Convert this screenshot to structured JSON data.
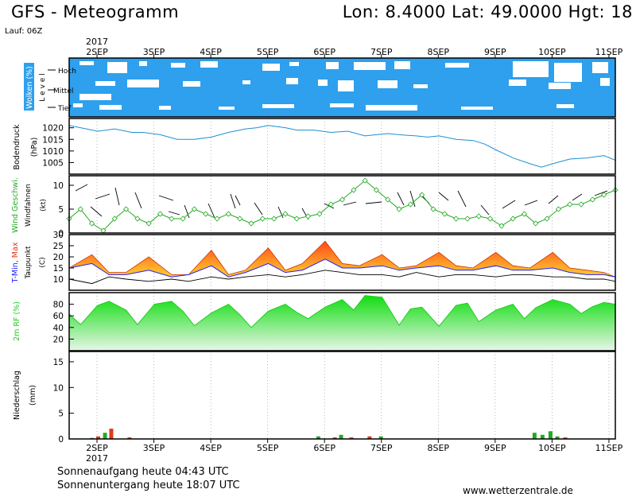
{
  "header": {
    "title": "GFS - Meteogramm",
    "location": "Lon: 8.4000  Lat: 49.0000  Hgt: 18",
    "run": "Lauf: 06Z"
  },
  "footer": {
    "sunrise": "Sonnenaufgang heute 04:43 UTC",
    "sunset": "Sonnenuntergang heute 18:07 UTC",
    "source": "www.wetterzentrale.de"
  },
  "colors": {
    "clouds": "#2ea0ee",
    "pressure": "#1e90d0",
    "wind": "#22aa22",
    "temp_fill_top": "#ff4a1a",
    "temp_fill_bottom": "#ffd030",
    "tmin": "#2222ff",
    "dewpoint": "#000000",
    "rh": "#22cc22",
    "precip_green": "#22aa22",
    "precip_red": "#e03a1a"
  },
  "chart_data": [
    {
      "type": "area",
      "panel": "clouds",
      "ylabel": "Wolken (%)",
      "ylabel2": "L e v e l",
      "levels": [
        "Hoch",
        "Mittel",
        "Tief"
      ],
      "x_ticks": [
        "2SEP",
        "3SEP",
        "4SEP",
        "5SEP",
        "6SEP",
        "7SEP",
        "8SEP",
        "9SEP",
        "10SEP",
        "11SEP"
      ],
      "year": "2017"
    },
    {
      "type": "line",
      "panel": "pressure",
      "ylabel": "Bodendruck",
      "ylabel2": "(hPa)",
      "yticks": [
        1005,
        1010,
        1015,
        1020
      ],
      "ylim": [
        1000,
        1024
      ],
      "x_days": [
        1.8,
        2.0,
        2.3,
        2.6,
        2.9,
        3.1,
        3.4,
        3.7,
        4.0,
        4.3,
        4.6,
        4.9,
        5.1,
        5.3,
        5.6,
        5.8,
        6.1,
        6.4,
        6.7,
        7.0,
        7.2,
        7.4,
        7.6,
        7.9,
        8.1,
        8.3,
        8.6,
        8.9,
        9.1,
        9.3,
        9.6,
        9.9,
        10.1,
        10.3,
        10.6,
        10.9,
        11.2,
        11.4
      ],
      "values": [
        1021,
        1020,
        1018.5,
        1019.5,
        1018,
        1018,
        1017,
        1015,
        1015,
        1016,
        1018,
        1019.5,
        1020,
        1021,
        1020,
        1019,
        1019,
        1018,
        1018.5,
        1016.5,
        1017,
        1017.5,
        1017,
        1016.5,
        1016,
        1016.5,
        1015,
        1014.5,
        1013,
        1010.5,
        1007,
        1004.5,
        1003,
        1004.5,
        1006.5,
        1007,
        1008,
        1006
      ]
    },
    {
      "type": "line",
      "panel": "wind",
      "ylabel": "Wind Geschwi.",
      "ylabel2": "Windfahnen",
      "ylabel3": "(kt)",
      "yticks": [
        0,
        5,
        10
      ],
      "ylim": [
        0,
        12
      ],
      "x_days": [
        1.8,
        2.0,
        2.2,
        2.4,
        2.6,
        2.8,
        3.0,
        3.2,
        3.4,
        3.6,
        3.8,
        4.0,
        4.2,
        4.4,
        4.6,
        4.8,
        5.0,
        5.2,
        5.4,
        5.6,
        5.8,
        6.0,
        6.2,
        6.4,
        6.6,
        6.8,
        7.0,
        7.2,
        7.4,
        7.6,
        7.8,
        8.0,
        8.2,
        8.4,
        8.6,
        8.8,
        9.0,
        9.2,
        9.4,
        9.6,
        9.8,
        10.0,
        10.2,
        10.4,
        10.6,
        10.8,
        11.0,
        11.2,
        11.4
      ],
      "values": [
        3,
        5,
        2,
        0.5,
        3,
        5,
        3,
        2,
        4,
        3,
        3,
        5,
        4,
        3,
        4,
        3,
        2,
        3,
        3,
        4,
        3,
        3.5,
        4,
        6,
        7,
        9,
        11,
        9,
        7,
        5,
        6,
        8,
        5,
        4,
        3,
        3,
        3.5,
        3,
        1.5,
        3,
        4,
        2,
        3,
        5,
        6,
        6,
        7,
        8,
        9
      ]
    },
    {
      "type": "area",
      "panel": "temperature",
      "ylabel": "T-Min, Max",
      "ylabel2": "Taupunkt",
      "ylabel3": "(C)",
      "yticks": [
        10,
        15,
        20,
        25,
        30
      ],
      "ylim": [
        5,
        30
      ],
      "series": [
        {
          "name": "Max",
          "x_days": [
            1.8,
            2.2,
            2.5,
            2.8,
            3.2,
            3.6,
            3.9,
            4.3,
            4.6,
            4.9,
            5.3,
            5.6,
            5.9,
            6.3,
            6.6,
            6.9,
            7.3,
            7.6,
            7.9,
            8.3,
            8.6,
            8.9,
            9.3,
            9.6,
            9.9,
            10.3,
            10.6,
            10.9,
            11.2,
            11.4
          ],
          "values": [
            15,
            21,
            13,
            13,
            20,
            12,
            12,
            23,
            12,
            14,
            24,
            14,
            17,
            27,
            17,
            16,
            21,
            15,
            16,
            22,
            16,
            15,
            22,
            16,
            15,
            22,
            15,
            14,
            13,
            11
          ]
        },
        {
          "name": "Min",
          "x_days": [
            1.8,
            2.2,
            2.5,
            2.8,
            3.2,
            3.6,
            3.9,
            4.3,
            4.6,
            4.9,
            5.3,
            5.6,
            5.9,
            6.3,
            6.6,
            6.9,
            7.3,
            7.6,
            7.9,
            8.3,
            8.6,
            8.9,
            9.3,
            9.6,
            9.9,
            10.3,
            10.6,
            10.9,
            11.2,
            11.4
          ],
          "values": [
            15,
            17,
            12,
            12,
            14,
            11,
            12,
            16,
            11,
            13,
            17,
            13,
            14,
            19,
            15,
            15,
            16,
            14,
            15,
            16,
            14,
            14,
            16,
            14,
            14,
            15,
            13,
            12,
            12,
            11
          ]
        },
        {
          "name": "Taupunkt",
          "x_days": [
            1.8,
            2.2,
            2.5,
            2.8,
            3.2,
            3.6,
            3.9,
            4.3,
            4.6,
            4.9,
            5.3,
            5.6,
            5.9,
            6.3,
            6.6,
            6.9,
            7.3,
            7.6,
            7.9,
            8.3,
            8.6,
            8.9,
            9.3,
            9.6,
            9.9,
            10.3,
            10.6,
            10.9,
            11.2,
            11.4
          ],
          "values": [
            10,
            8,
            11,
            10,
            9,
            10,
            9,
            11,
            10,
            11,
            12,
            11,
            12,
            14,
            13,
            12,
            12,
            11,
            13,
            11,
            12,
            12,
            11,
            12,
            12,
            11,
            11,
            10,
            10,
            9
          ]
        }
      ]
    },
    {
      "type": "area",
      "panel": "humidity",
      "ylabel": "2m RF (%)",
      "yticks": [
        20,
        40,
        60,
        80
      ],
      "ylim": [
        0,
        100
      ],
      "x_days": [
        1.8,
        2.0,
        2.3,
        2.5,
        2.8,
        3.0,
        3.3,
        3.6,
        3.8,
        4.0,
        4.3,
        4.6,
        4.8,
        5.0,
        5.3,
        5.6,
        5.8,
        6.0,
        6.3,
        6.6,
        6.8,
        7.0,
        7.3,
        7.6,
        7.8,
        8.0,
        8.3,
        8.6,
        8.8,
        9.0,
        9.3,
        9.6,
        9.8,
        10.0,
        10.3,
        10.6,
        10.8,
        11.0,
        11.2,
        11.4
      ],
      "values": [
        63,
        45,
        78,
        85,
        70,
        45,
        80,
        85,
        68,
        43,
        65,
        80,
        62,
        40,
        68,
        80,
        66,
        55,
        75,
        88,
        70,
        95,
        92,
        44,
        72,
        75,
        42,
        78,
        82,
        50,
        70,
        80,
        55,
        74,
        88,
        80,
        64,
        76,
        83,
        80
      ]
    },
    {
      "type": "bar",
      "panel": "precipitation",
      "ylabel": "Niederschlag",
      "ylabel2": "(mm)",
      "yticks": [
        0,
        5,
        10,
        15
      ],
      "ylim": [
        0,
        17
      ],
      "x_days": [
        2.2,
        2.31,
        2.43,
        2.54,
        2.86,
        6.18,
        6.47,
        6.58,
        6.76,
        7.08,
        7.28,
        9.98,
        10.12,
        10.26,
        10.38,
        10.52
      ],
      "values": [
        0.2,
        0.5,
        1.2,
        2.0,
        0.3,
        0.5,
        0.3,
        0.8,
        0.3,
        0.5,
        0.5,
        1.2,
        0.8,
        1.5,
        0.5,
        0.3
      ],
      "colors": [
        "green",
        "red",
        "green",
        "red",
        "red",
        "green",
        "red",
        "green",
        "red",
        "red",
        "green",
        "green",
        "green",
        "green",
        "green",
        "red"
      ]
    }
  ]
}
